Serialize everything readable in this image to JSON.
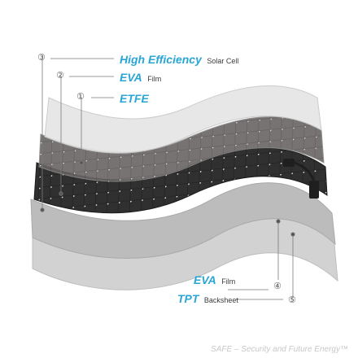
{
  "callouts": {
    "c1": {
      "number": "①",
      "title": "ETFE",
      "suffix": ""
    },
    "c2": {
      "number": "②",
      "title": "EVA",
      "suffix": "Film"
    },
    "c3": {
      "number": "③",
      "title": "High Efficiency",
      "suffix": "Solar Cell"
    },
    "c4": {
      "number": "④",
      "title": "EVA",
      "suffix": "Film"
    },
    "c5": {
      "number": "⑤",
      "title": "TPT",
      "suffix": "Backsheet"
    }
  },
  "footer": "SAFE – Security and Future Energy™",
  "colors": {
    "accent": "#2aa6d6",
    "layer_light": "#d9d9d9",
    "layer_mid": "#b9b9b9",
    "cell": "#2b2b2b"
  }
}
